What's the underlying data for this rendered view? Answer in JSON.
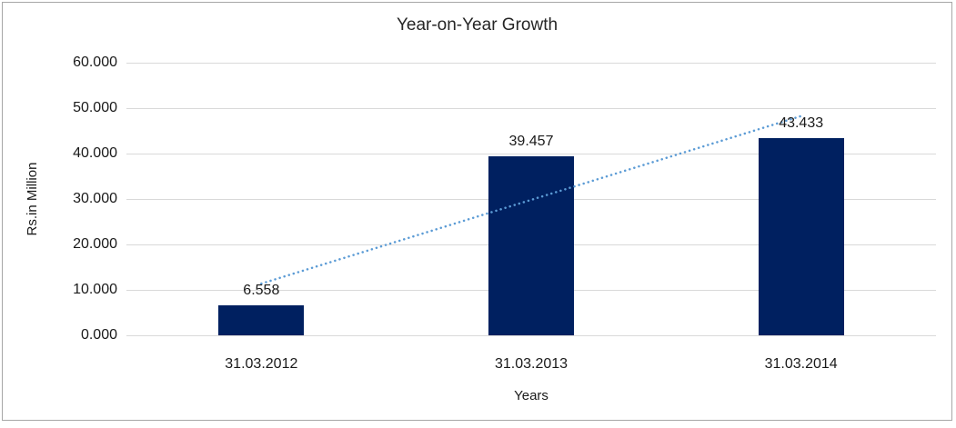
{
  "window": {
    "background": "#ffffff",
    "frame_border_color": "#a6a6a6"
  },
  "chart_data": {
    "type": "bar",
    "title": "Year-on-Year Growth",
    "xlabel": "Years",
    "ylabel": "Rs.in Million",
    "categories": [
      "31.03.2012",
      "31.03.2013",
      "31.03.2014"
    ],
    "values": [
      6.558,
      39.457,
      43.433
    ],
    "data_labels": [
      "6.558",
      "39.457",
      "43.433"
    ],
    "ylim": [
      0,
      60
    ],
    "y_ticks": [
      60,
      50,
      40,
      30,
      20,
      10,
      0
    ],
    "y_tick_labels": [
      "60.000",
      "50.000",
      "40.000",
      "30.000",
      "20.000",
      "10.000",
      "0.000"
    ],
    "grid": true,
    "legend": "none",
    "bar_color": "#002060",
    "gridline_color": "#d9d9d9",
    "trendline": {
      "type": "linear",
      "style": "dotted",
      "color": "#5b9bd5",
      "start_value": 11.38,
      "end_value": 48.25
    }
  }
}
